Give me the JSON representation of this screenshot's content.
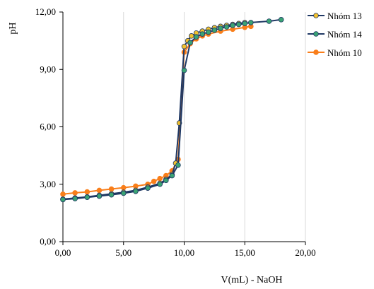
{
  "chart_data": {
    "type": "line",
    "xlabel": "V(mL) - NaOH",
    "ylabel": "pH",
    "xlim": [
      0,
      20
    ],
    "ylim": [
      0,
      12
    ],
    "x_ticks": [
      "0,00",
      "5,00",
      "10,00",
      "15,00",
      "20,00"
    ],
    "y_ticks": [
      "0,00",
      "3,00",
      "6,00",
      "9,00",
      "12,00"
    ],
    "grid": "vertical",
    "legend_position": "right",
    "series": [
      {
        "name": "Nhóm 13",
        "color": "#1f3864",
        "marker_color": "#f2c12e",
        "x": [
          0,
          1,
          2,
          3,
          4,
          5,
          6,
          7,
          8,
          8.5,
          9,
          9.3,
          9.6,
          10,
          10.3,
          10.6,
          11,
          11.5,
          12,
          12.5,
          13,
          13.5,
          14,
          14.5,
          15
        ],
        "y": [
          2.22,
          2.28,
          2.34,
          2.42,
          2.5,
          2.58,
          2.68,
          2.85,
          3.05,
          3.25,
          3.5,
          4.1,
          6.2,
          10.2,
          10.5,
          10.75,
          10.9,
          11.0,
          11.1,
          11.18,
          11.25,
          11.3,
          11.35,
          11.4,
          11.45
        ]
      },
      {
        "name": "Nhóm 14",
        "color": "#1f3864",
        "marker_color": "#3aa374",
        "x": [
          0,
          1,
          2,
          3,
          4,
          5,
          6,
          7,
          8,
          8.5,
          9,
          9.5,
          10,
          10.5,
          11,
          11.5,
          12,
          12.5,
          13,
          13.5,
          14,
          14.5,
          15,
          15.5,
          17,
          18
        ],
        "y": [
          2.2,
          2.25,
          2.32,
          2.38,
          2.45,
          2.53,
          2.63,
          2.8,
          3.0,
          3.2,
          3.45,
          4.0,
          8.95,
          10.4,
          10.7,
          10.85,
          10.95,
          11.05,
          11.15,
          11.22,
          11.3,
          11.35,
          11.4,
          11.45,
          11.52,
          11.6
        ]
      },
      {
        "name": "Nhóm 10",
        "color": "#f97e1a",
        "marker_color": "#f97e1a",
        "x": [
          0,
          1,
          2,
          3,
          4,
          5,
          6,
          7,
          7.5,
          8,
          8.5,
          9,
          9.5,
          10,
          10.5,
          11,
          11.5,
          12,
          13,
          14,
          15,
          15.5
        ],
        "y": [
          2.48,
          2.55,
          2.6,
          2.68,
          2.75,
          2.82,
          2.9,
          3.0,
          3.15,
          3.3,
          3.45,
          3.7,
          4.3,
          9.9,
          10.35,
          10.6,
          10.75,
          10.85,
          11.0,
          11.1,
          11.2,
          11.25
        ]
      }
    ]
  }
}
